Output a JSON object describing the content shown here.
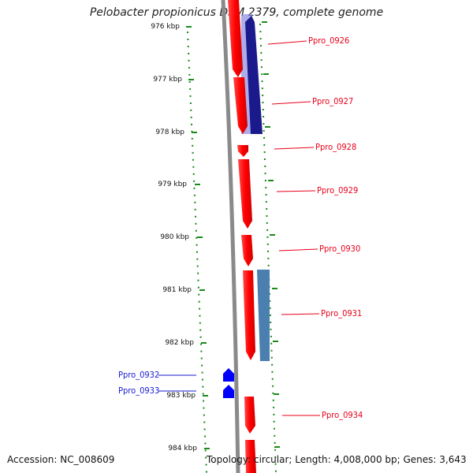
{
  "title": "Pelobacter propionicus DSM 2379, complete genome",
  "ticks": [
    "976 kbp",
    "977 kbp",
    "978 kbp",
    "979 kbp",
    "980 kbp",
    "981 kbp",
    "982 kbp",
    "983 kbp",
    "984 kbp"
  ],
  "genes_right": [
    "Ppro_0926",
    "Ppro_0927",
    "Ppro_0928",
    "Ppro_0929",
    "Ppro_0930",
    "Ppro_0931",
    "Ppro_0934"
  ],
  "genes_left": [
    "Ppro_0932",
    "Ppro_0933"
  ],
  "footer": {
    "accession": "Accession: NC_008609",
    "topology": "Topology: circular; Length: 4,008,000 bp; Genes: 3,643"
  },
  "colors": {
    "forward_gene": "#ff0000",
    "reverse_gene_dark": "#1a1a8c",
    "reverse_gene_light": "#4a7fb0",
    "small_gene": "#0000ff",
    "backbone": "#8a8a8a",
    "ticks": "#1a8a1a",
    "label_red": "#e8001a",
    "label_blue": "#1a1ad0"
  }
}
